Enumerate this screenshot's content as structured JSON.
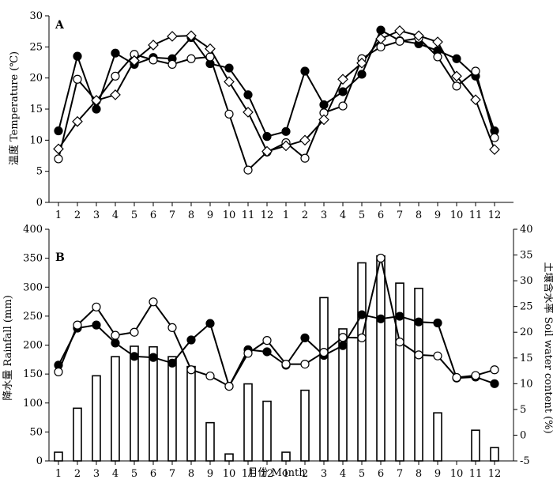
{
  "chart_data": [
    {
      "type": "line",
      "panel_label": "A",
      "ylabel": "温度 Temperature (℃)",
      "ylim": [
        0,
        30
      ],
      "yticks": [
        "0",
        "5",
        "10",
        "15",
        "20",
        "25",
        "30"
      ],
      "categories": [
        "1",
        "2",
        "3",
        "4",
        "5",
        "6",
        "7",
        "8",
        "9",
        "10",
        "11",
        "12",
        "1",
        "2",
        "3",
        "4",
        "5",
        "6",
        "7",
        "8",
        "9",
        "10",
        "11",
        "12"
      ],
      "series": [
        {
          "marker": "filled-circle",
          "values": [
            11.5,
            23.5,
            15.0,
            24.0,
            22.2,
            23.3,
            23.1,
            26.5,
            22.3,
            21.6,
            17.3,
            10.6,
            11.4,
            21.1,
            15.7,
            17.8,
            20.6,
            27.7,
            26.0,
            25.5,
            24.4,
            23.1,
            20.3,
            11.5
          ]
        },
        {
          "marker": "open-circle",
          "values": [
            7.0,
            19.8,
            16.3,
            20.3,
            23.8,
            22.9,
            22.2,
            23.1,
            23.4,
            14.2,
            5.2,
            8.1,
            9.6,
            7.1,
            14.4,
            15.5,
            23.1,
            25.0,
            25.9,
            26.4,
            23.4,
            18.7,
            21.1,
            10.4
          ]
        },
        {
          "marker": "open-diamond",
          "values": [
            8.6,
            13.0,
            16.4,
            17.3,
            22.8,
            25.3,
            26.7,
            26.8,
            24.7,
            19.4,
            14.5,
            8.2,
            9.1,
            10.0,
            13.3,
            19.8,
            22.4,
            26.3,
            27.6,
            26.8,
            25.8,
            20.3,
            16.5,
            8.5
          ]
        }
      ]
    },
    {
      "type": "bar+line",
      "panel_label": "B",
      "xlabel": "月份 Month",
      "ylabel": "降水量 Rainfall (mm)",
      "y2label": "土壤含水率 Soil water content (%)",
      "ylim": [
        0,
        400
      ],
      "yticks": [
        "0",
        "50",
        "100",
        "150",
        "200",
        "250",
        "300",
        "350",
        "400"
      ],
      "y2lim": [
        -5,
        40
      ],
      "y2ticks": [
        "-5",
        "0",
        "5",
        "10",
        "15",
        "20",
        "25",
        "30",
        "35",
        "40"
      ],
      "categories": [
        "1",
        "2",
        "3",
        "4",
        "5",
        "6",
        "7",
        "8",
        "9",
        "10",
        "11",
        "12",
        "1",
        "2",
        "3",
        "4",
        "5",
        "6",
        "7",
        "8",
        "9",
        "10",
        "11",
        "12"
      ],
      "bars": {
        "values": [
          15,
          91,
          147,
          180,
          198,
          197,
          180,
          163,
          66,
          12,
          133,
          103,
          15,
          122,
          282,
          228,
          342,
          354,
          307,
          298,
          83,
          0,
          53,
          23
        ]
      },
      "series": [
        {
          "marker": "filled-circle",
          "axis": "right",
          "values": [
            13.6,
            20.8,
            21.4,
            17.9,
            15.3,
            15.1,
            14.0,
            18.5,
            21.7,
            9.5,
            16.6,
            16.2,
            13.6,
            18.9,
            15.5,
            17.4,
            23.4,
            22.6,
            23.1,
            22.0,
            21.8,
            11.1,
            11.3,
            10.0
          ]
        },
        {
          "marker": "open-circle",
          "axis": "right",
          "values": [
            12.3,
            21.4,
            24.9,
            19.4,
            20.0,
            25.9,
            20.9,
            12.7,
            11.5,
            9.5,
            15.9,
            18.4,
            13.8,
            13.8,
            16.1,
            19.0,
            18.9,
            34.4,
            18.1,
            15.6,
            15.4,
            11.2,
            11.6,
            12.7
          ]
        }
      ]
    }
  ]
}
